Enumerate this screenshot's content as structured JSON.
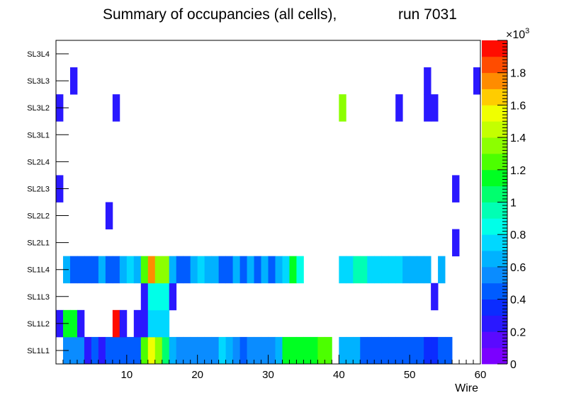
{
  "chart_data": {
    "type": "heatmap",
    "title": "Summary of occupancies (all cells),",
    "run_label": "run 7031",
    "xlabel": "Wire",
    "ylabel": "",
    "xlim": [
      0,
      60
    ],
    "x_ticks": [
      10,
      20,
      30,
      40,
      50,
      60
    ],
    "layers": [
      "SL1L1",
      "SL1L2",
      "SL1L3",
      "SL1L4",
      "SL2L1",
      "SL2L2",
      "SL2L3",
      "SL2L4",
      "SL3L1",
      "SL3L2",
      "SL3L3",
      "SL3L4"
    ],
    "z_range": [
      0,
      2000
    ],
    "z_ticks": [
      0,
      0.2,
      0.4,
      0.6,
      0.8,
      1,
      1.2,
      1.4,
      1.6,
      1.8
    ],
    "z_tick_labels": [
      "0",
      "0.2",
      "0.4",
      "0.6",
      "0.8",
      "1",
      "1.2",
      "1.4",
      "1.6",
      "1.8"
    ],
    "z_exponent": "×10",
    "z_exponent_power": "3",
    "palette": [
      "#7b00ff",
      "#5a0aff",
      "#2a18ff",
      "#0b2cff",
      "#005cff",
      "#0a8cff",
      "#00b2ff",
      "#00d8ff",
      "#00ffe8",
      "#00ffb4",
      "#00ff6e",
      "#00ff22",
      "#4cff00",
      "#8cff00",
      "#c4ff00",
      "#f0ff00",
      "#ffcc00",
      "#ff8c00",
      "#ff4c00",
      "#ff0c00"
    ],
    "cells": [
      {
        "layer": "SL1L1",
        "values": [
          0,
          590,
          590,
          560,
          220,
          470,
          220,
          440,
          440,
          440,
          440,
          440,
          1250,
          1500,
          1300,
          1000,
          650,
          570,
          570,
          570,
          570,
          570,
          570,
          790,
          690,
          570,
          470,
          570,
          570,
          570,
          570,
          690,
          1100,
          1100,
          1100,
          1100,
          1100,
          1280,
          1280,
          0,
          640,
          640,
          640,
          490,
          490,
          420,
          420,
          420,
          490,
          490,
          440,
          440,
          330,
          330,
          440,
          440,
          0,
          0,
          0,
          0
        ]
      },
      {
        "layer": "SL1L2",
        "values": [
          200,
          1120,
          1120,
          200,
          0,
          0,
          0,
          0,
          1950,
          200,
          0,
          200,
          200,
          720,
          750,
          720,
          0,
          0,
          0,
          0,
          0,
          0,
          0,
          0,
          0,
          0,
          0,
          0,
          0,
          0,
          0,
          0,
          0,
          0,
          0,
          0,
          0,
          0,
          0,
          0,
          0,
          0,
          0,
          0,
          0,
          0,
          0,
          0,
          0,
          0,
          0,
          0,
          0,
          0,
          0,
          0,
          0,
          0,
          0,
          0
        ]
      },
      {
        "layer": "SL1L3",
        "values": [
          0,
          0,
          0,
          0,
          0,
          0,
          0,
          0,
          0,
          0,
          0,
          0,
          200,
          820,
          820,
          820,
          200,
          0,
          0,
          0,
          0,
          0,
          0,
          0,
          0,
          0,
          0,
          0,
          0,
          0,
          0,
          0,
          0,
          0,
          0,
          0,
          0,
          0,
          0,
          0,
          0,
          0,
          0,
          0,
          0,
          0,
          0,
          0,
          0,
          0,
          0,
          0,
          0,
          200,
          0,
          0,
          0,
          0,
          0,
          0
        ]
      },
      {
        "layer": "SL1L4",
        "values": [
          0,
          600,
          490,
          490,
          490,
          490,
          600,
          490,
          490,
          600,
          790,
          600,
          1250,
          1750,
          1300,
          1300,
          600,
          490,
          490,
          600,
          790,
          600,
          600,
          490,
          490,
          600,
          490,
          600,
          490,
          600,
          490,
          600,
          790,
          1150,
          840,
          0,
          0,
          0,
          0,
          0,
          700,
          700,
          900,
          900,
          790,
          790,
          790,
          790,
          700,
          600,
          600,
          600,
          600,
          0,
          600,
          0,
          0,
          0,
          0,
          0
        ]
      },
      {
        "layer": "SL2L1",
        "values": [
          0,
          0,
          0,
          0,
          0,
          0,
          0,
          0,
          0,
          0,
          0,
          0,
          0,
          0,
          0,
          0,
          0,
          0,
          0,
          0,
          0,
          0,
          0,
          0,
          0,
          0,
          0,
          0,
          0,
          0,
          0,
          0,
          0,
          0,
          0,
          0,
          0,
          0,
          0,
          0,
          0,
          0,
          0,
          0,
          0,
          0,
          0,
          0,
          0,
          0,
          0,
          0,
          0,
          0,
          0,
          0,
          200,
          0,
          0,
          0
        ]
      },
      {
        "layer": "SL2L2",
        "values": [
          0,
          0,
          0,
          0,
          0,
          0,
          0,
          200,
          0,
          0,
          0,
          0,
          0,
          0,
          0,
          0,
          0,
          0,
          0,
          0,
          0,
          0,
          0,
          0,
          0,
          0,
          0,
          0,
          0,
          0,
          0,
          0,
          0,
          0,
          0,
          0,
          0,
          0,
          0,
          0,
          0,
          0,
          0,
          0,
          0,
          0,
          0,
          0,
          0,
          0,
          0,
          0,
          0,
          0,
          0,
          0,
          0,
          0,
          0,
          0
        ]
      },
      {
        "layer": "SL2L3",
        "values": [
          200,
          0,
          0,
          0,
          0,
          0,
          0,
          0,
          0,
          0,
          0,
          0,
          0,
          0,
          0,
          0,
          0,
          0,
          0,
          0,
          0,
          0,
          0,
          0,
          0,
          0,
          0,
          0,
          0,
          0,
          0,
          0,
          0,
          0,
          0,
          0,
          0,
          0,
          0,
          0,
          0,
          0,
          0,
          0,
          0,
          0,
          0,
          0,
          0,
          0,
          0,
          0,
          0,
          0,
          0,
          0,
          200,
          0,
          0,
          0
        ]
      },
      {
        "layer": "SL2L4",
        "values": [
          0,
          0,
          0,
          0,
          0,
          0,
          0,
          0,
          0,
          0,
          0,
          0,
          0,
          0,
          0,
          0,
          0,
          0,
          0,
          0,
          0,
          0,
          0,
          0,
          0,
          0,
          0,
          0,
          0,
          0,
          0,
          0,
          0,
          0,
          0,
          0,
          0,
          0,
          0,
          0,
          0,
          0,
          0,
          0,
          0,
          0,
          0,
          0,
          0,
          0,
          0,
          0,
          0,
          0,
          0,
          0,
          0,
          0,
          0,
          0
        ]
      },
      {
        "layer": "SL3L1",
        "values": [
          0,
          0,
          0,
          0,
          0,
          0,
          0,
          0,
          0,
          0,
          0,
          0,
          0,
          0,
          0,
          0,
          0,
          0,
          0,
          0,
          0,
          0,
          0,
          0,
          0,
          0,
          0,
          0,
          0,
          0,
          0,
          0,
          0,
          0,
          0,
          0,
          0,
          0,
          0,
          0,
          0,
          0,
          0,
          0,
          0,
          0,
          0,
          0,
          0,
          0,
          0,
          0,
          0,
          0,
          0,
          0,
          0,
          0,
          0,
          0
        ]
      },
      {
        "layer": "SL3L2",
        "values": [
          200,
          0,
          0,
          0,
          0,
          0,
          0,
          0,
          200,
          0,
          0,
          0,
          0,
          0,
          0,
          0,
          0,
          0,
          0,
          0,
          0,
          0,
          0,
          0,
          0,
          0,
          0,
          0,
          0,
          0,
          0,
          0,
          0,
          0,
          0,
          0,
          0,
          0,
          0,
          0,
          1350,
          0,
          0,
          0,
          0,
          0,
          0,
          0,
          200,
          0,
          0,
          0,
          200,
          200,
          0,
          0,
          0,
          0,
          0,
          0
        ]
      },
      {
        "layer": "SL3L3",
        "values": [
          0,
          0,
          200,
          0,
          0,
          0,
          0,
          0,
          0,
          0,
          0,
          0,
          0,
          0,
          0,
          0,
          0,
          0,
          0,
          0,
          0,
          0,
          0,
          0,
          0,
          0,
          0,
          0,
          0,
          0,
          0,
          0,
          0,
          0,
          0,
          0,
          0,
          0,
          0,
          0,
          0,
          0,
          0,
          0,
          0,
          0,
          0,
          0,
          0,
          0,
          0,
          0,
          200,
          0,
          0,
          0,
          0,
          0,
          0,
          200
        ]
      },
      {
        "layer": "SL3L4",
        "values": [
          0,
          0,
          0,
          0,
          0,
          0,
          0,
          0,
          0,
          0,
          0,
          0,
          0,
          0,
          0,
          0,
          0,
          0,
          0,
          0,
          0,
          0,
          0,
          0,
          0,
          0,
          0,
          0,
          0,
          0,
          0,
          0,
          0,
          0,
          0,
          0,
          0,
          0,
          0,
          0,
          0,
          0,
          0,
          0,
          0,
          0,
          0,
          0,
          0,
          0,
          0,
          0,
          0,
          0,
          0,
          0,
          0,
          0,
          0,
          0
        ]
      }
    ]
  }
}
